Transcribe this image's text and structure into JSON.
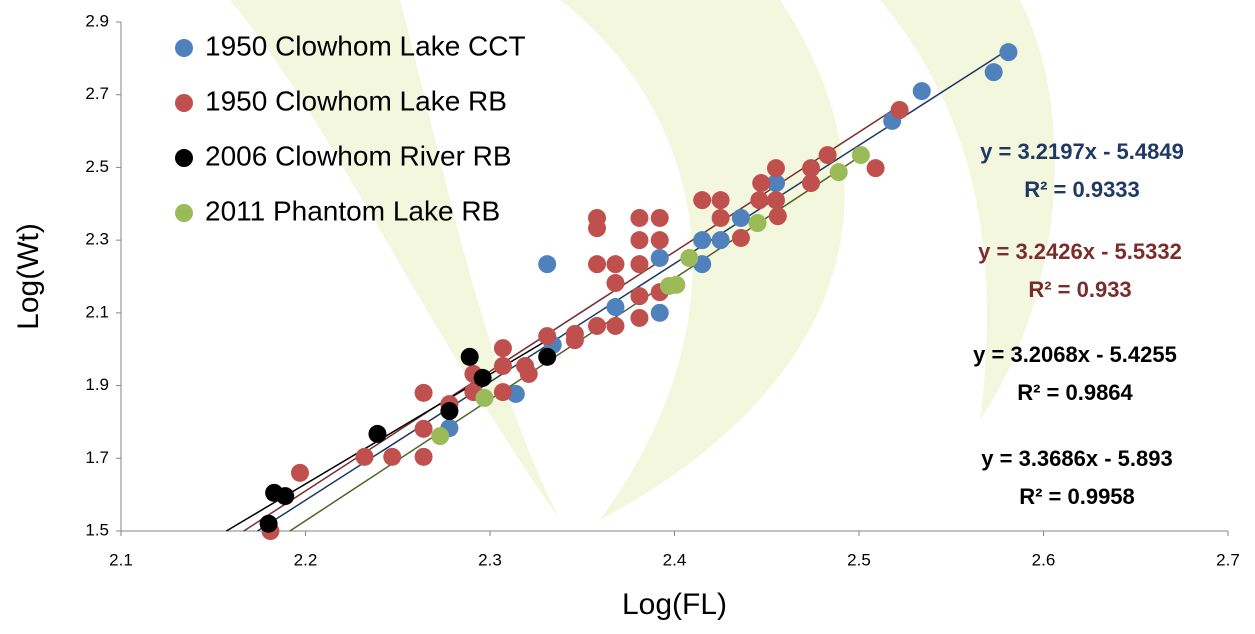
{
  "chart_data": {
    "type": "scatter",
    "x_label": "Log(FL)",
    "y_label": "Log(Wt)",
    "xlim": [
      2.1,
      2.7
    ],
    "xticks": [
      2.1,
      2.2,
      2.3,
      2.4,
      2.5,
      2.6,
      2.7
    ],
    "ylim": [
      1.5,
      2.9
    ],
    "yticks": [
      1.5,
      1.7,
      1.9,
      2.1,
      2.3,
      2.5,
      2.7,
      2.9
    ],
    "grid": false,
    "legend": "upper left",
    "series": [
      {
        "name": "1950 Clowhom Lake CCT",
        "color": "#4f81bd",
        "trend_color": "#1f3864",
        "x": [
          2.581,
          2.573,
          2.534,
          2.518,
          2.455,
          2.436,
          2.425,
          2.415,
          2.415,
          2.392,
          2.392,
          2.368,
          2.331,
          2.334,
          2.314,
          2.278
        ],
        "values": [
          2.817,
          2.762,
          2.71,
          2.628,
          2.457,
          2.361,
          2.3,
          2.3,
          2.234,
          2.251,
          2.1,
          2.116,
          2.234,
          2.012,
          1.877,
          1.783
        ]
      },
      {
        "name": "1950 Clowhom Lake RB",
        "color": "#c0504d",
        "trend_color": "#7b2c2c",
        "x": [
          2.181,
          2.197,
          2.232,
          2.247,
          2.264,
          2.264,
          2.264,
          2.278,
          2.291,
          2.291,
          2.307,
          2.307,
          2.307,
          2.319,
          2.321,
          2.331,
          2.346,
          2.346,
          2.358,
          2.358,
          2.358,
          2.358,
          2.368,
          2.368,
          2.368,
          2.381,
          2.381,
          2.381,
          2.381,
          2.381,
          2.392,
          2.392,
          2.392,
          2.415,
          2.425,
          2.425,
          2.436,
          2.446,
          2.447,
          2.455,
          2.455,
          2.456,
          2.474,
          2.474,
          2.483,
          2.509,
          2.522
        ],
        "values": [
          1.5,
          1.66,
          1.704,
          1.704,
          1.704,
          1.781,
          1.88,
          1.849,
          1.932,
          1.882,
          2.003,
          1.954,
          1.882,
          1.954,
          1.932,
          2.036,
          2.042,
          2.025,
          2.064,
          2.234,
          2.361,
          2.333,
          2.234,
          2.182,
          2.064,
          2.234,
          2.3,
          2.361,
          2.146,
          2.086,
          2.361,
          2.3,
          2.157,
          2.41,
          2.41,
          2.361,
          2.306,
          2.41,
          2.457,
          2.498,
          2.41,
          2.366,
          2.498,
          2.457,
          2.534,
          2.498,
          2.658
        ]
      },
      {
        "name": "2006 Clowhom River RB",
        "color": "#000000",
        "trend_color": "#000000",
        "x": [
          2.18,
          2.183,
          2.189,
          2.239,
          2.278,
          2.289,
          2.296,
          2.331
        ],
        "values": [
          1.52,
          1.605,
          1.596,
          1.767,
          1.83,
          1.979,
          1.921,
          1.979
        ]
      },
      {
        "name": "2011 Phantom Lake RB",
        "color": "#9bbb59",
        "trend_color": "#4f6228",
        "x": [
          2.273,
          2.297,
          2.397,
          2.401,
          2.408,
          2.445,
          2.489,
          2.501
        ],
        "values": [
          1.761,
          1.866,
          2.174,
          2.177,
          2.251,
          2.347,
          2.487,
          2.534
        ]
      }
    ],
    "annotations": [
      {
        "lines": [
          "y = 3.2197x - 5.4849",
          "R² = 0.9333"
        ],
        "color": "#1f3864"
      },
      {
        "lines": [
          "y = 3.2426x - 5.5332",
          "R² = 0.933"
        ],
        "color": "#7b2c2c"
      },
      {
        "lines": [
          "y = 3.2068x - 5.4255",
          "R² = 0.9864"
        ],
        "color": "#000000"
      },
      {
        "lines": [
          "y = 3.3686x - 5.893",
          "R² = 0.9958"
        ],
        "color": "#000000"
      }
    ]
  }
}
